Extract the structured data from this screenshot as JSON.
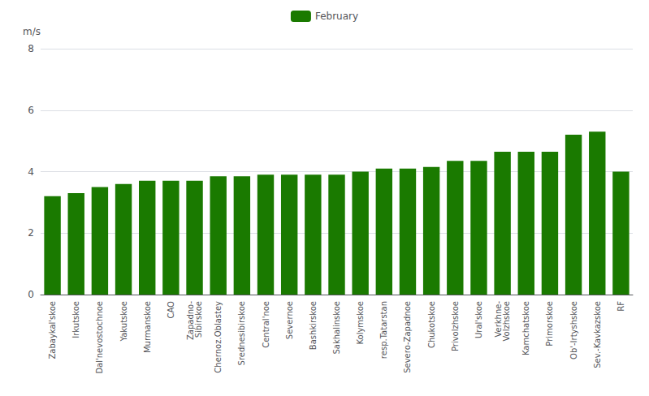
{
  "chart_data": {
    "type": "bar",
    "categories": [
      "Zabaykal'skoe",
      "Irkutskoe",
      "Dal'nevostochnoe",
      "Yakutskoe",
      "Murmanskoe",
      "CAO",
      "Zapadno-\nSibirskoe",
      "Chernoz.Oblastey",
      "Srednesibirskoe",
      "Central'noe",
      "Severnoe",
      "Bashkirskoe",
      "Sakhalinskoe",
      "Kolymskoe",
      "resp.Tatarstan",
      "Severo-Zapadnoe",
      "Chukotskoe",
      "Privolzhskoe",
      "Ural'skoe",
      "Verkhne-\nVolzhskoe",
      "Kamchatskoe",
      "Primorskoe",
      "Ob'-Irtyshskoe",
      "Sev.-Kavkazskoe",
      "RF"
    ],
    "series": [
      {
        "name": "February",
        "color": "#1a7a00",
        "values": [
          3.2,
          3.3,
          3.5,
          3.6,
          3.7,
          3.7,
          3.7,
          3.85,
          3.85,
          3.9,
          3.9,
          3.9,
          3.9,
          4.0,
          4.1,
          4.1,
          4.15,
          4.35,
          4.35,
          4.65,
          4.65,
          4.65,
          5.2,
          5.3,
          4.0
        ]
      }
    ],
    "ylabel": "m/s",
    "ylim": [
      0,
      8
    ],
    "yticks": [
      0,
      2,
      4,
      6,
      8
    ],
    "grid": true,
    "legend": "top"
  }
}
